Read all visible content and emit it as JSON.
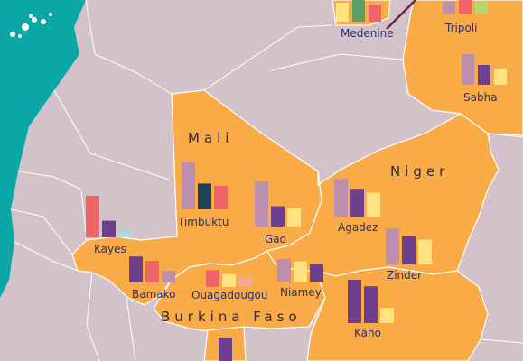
{
  "colors": {
    "sea": "#0aa7a6",
    "land": "#d3c2c9",
    "highlight": "#f9ab48",
    "border": "#ffffff",
    "label": "#2b2f6b",
    "bar_mauve": "#bd8fae",
    "bar_purple": "#6d3f8c",
    "bar_coral": "#f06368",
    "bar_navy": "#1f4258",
    "bar_yellow": "#ffe380",
    "bar_green": "#5e9f65",
    "bar_lightblue": "#a8dbe3",
    "bar_peach": "#f5a995",
    "bar_lime": "#b7d86a",
    "route_line": "#6a2546"
  },
  "countries": [
    {
      "id": "mali",
      "name": "Mali"
    },
    {
      "id": "niger",
      "name": "Niger"
    },
    {
      "id": "burkina",
      "name": "Burkina Faso"
    }
  ],
  "cities": [
    {
      "id": "medenine",
      "name": "Medenine",
      "bars": [
        {
          "color": "bar_yellow",
          "value": 0.7
        },
        {
          "color": "bar_green",
          "value": 0.85
        },
        {
          "color": "bar_coral",
          "value": 0.6
        }
      ]
    },
    {
      "id": "tripoli",
      "name": "Tripoli",
      "bars": [
        {
          "color": "bar_mauve",
          "value": 0.55
        },
        {
          "color": "bar_coral",
          "value": 0.65
        },
        {
          "color": "bar_lime",
          "value": 0.55
        }
      ]
    },
    {
      "id": "sabha",
      "name": "Sabha",
      "bars": [
        {
          "color": "bar_mauve",
          "value": 0.85
        },
        {
          "color": "bar_purple",
          "value": 0.55
        },
        {
          "color": "bar_yellow",
          "value": 0.45
        }
      ]
    },
    {
      "id": "timbuktu",
      "name": "Timbuktu",
      "bars": [
        {
          "color": "bar_mauve",
          "value": 1.0
        },
        {
          "color": "bar_navy",
          "value": 0.55
        },
        {
          "color": "bar_coral",
          "value": 0.5
        }
      ]
    },
    {
      "id": "gao",
      "name": "Gao",
      "bars": [
        {
          "color": "bar_mauve",
          "value": 1.0
        },
        {
          "color": "bar_purple",
          "value": 0.45
        },
        {
          "color": "bar_yellow",
          "value": 0.4
        }
      ]
    },
    {
      "id": "agadez",
      "name": "Agadez",
      "bars": [
        {
          "color": "bar_mauve",
          "value": 0.95
        },
        {
          "color": "bar_purple",
          "value": 0.7
        },
        {
          "color": "bar_yellow",
          "value": 0.6
        }
      ]
    },
    {
      "id": "kayes",
      "name": "Kayes",
      "bars": [
        {
          "color": "bar_coral",
          "value": 1.0
        },
        {
          "color": "bar_purple",
          "value": 0.4
        },
        {
          "color": "bar_lightblue",
          "value": 0.15
        }
      ]
    },
    {
      "id": "zinder",
      "name": "Zinder",
      "bars": [
        {
          "color": "bar_mauve",
          "value": 0.95
        },
        {
          "color": "bar_purple",
          "value": 0.75
        },
        {
          "color": "bar_yellow",
          "value": 0.65
        }
      ]
    },
    {
      "id": "bamako",
      "name": "Bamako",
      "bars": [
        {
          "color": "bar_purple",
          "value": 0.9
        },
        {
          "color": "bar_coral",
          "value": 0.75
        },
        {
          "color": "bar_mauve",
          "value": 0.4
        }
      ]
    },
    {
      "id": "ouagadougou",
      "name": "Ouagadougou",
      "bars": [
        {
          "color": "bar_coral",
          "value": 0.85
        },
        {
          "color": "bar_yellow",
          "value": 0.65
        },
        {
          "color": "bar_peach",
          "value": 0.5
        }
      ]
    },
    {
      "id": "niamey",
      "name": "Niamey",
      "bars": [
        {
          "color": "bar_mauve",
          "value": 0.9
        },
        {
          "color": "bar_yellow",
          "value": 0.8
        },
        {
          "color": "bar_purple",
          "value": 0.7
        }
      ]
    },
    {
      "id": "kano",
      "name": "Kano",
      "bars": [
        {
          "color": "bar_purple",
          "value": 1.0
        },
        {
          "color": "bar_purple",
          "value": 0.85
        },
        {
          "color": "bar_yellow",
          "value": 0.35
        }
      ]
    },
    {
      "id": "bottom",
      "name": "",
      "bars": [
        {
          "color": "bar_purple",
          "value": 1.0
        }
      ]
    }
  ]
}
